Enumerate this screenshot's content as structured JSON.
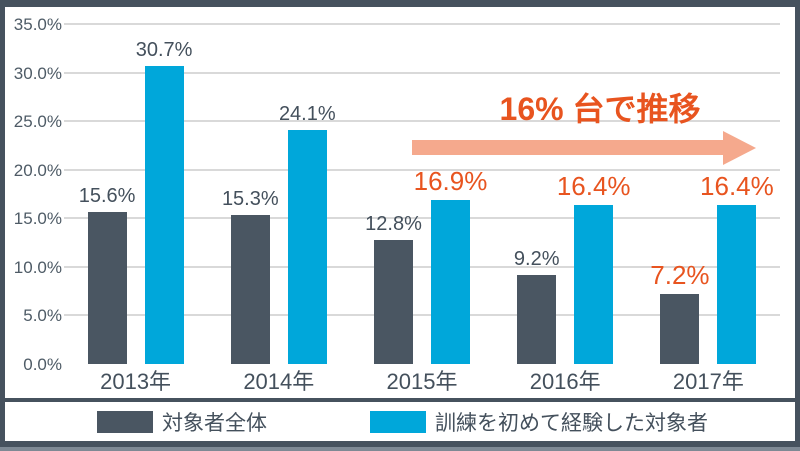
{
  "frame": {
    "border_color": "#46525E",
    "bottom_strip_color": "#7E8994"
  },
  "chart_data": {
    "type": "bar",
    "title": "",
    "categories": [
      "2013年",
      "2014年",
      "2015年",
      "2016年",
      "2017年"
    ],
    "series": [
      {
        "name": "対象者全体",
        "color": "#4A5662",
        "values": [
          15.6,
          15.3,
          12.8,
          9.2,
          7.2
        ],
        "labels": [
          "15.6%",
          "15.3%",
          "12.8%",
          "9.2%",
          "7.2%"
        ],
        "label_highlight": [
          false,
          false,
          false,
          false,
          true
        ]
      },
      {
        "name": "訓練を初めて経験した対象者",
        "color": "#00A7DA",
        "values": [
          30.7,
          24.1,
          16.9,
          16.4,
          16.4
        ],
        "labels": [
          "30.7%",
          "24.1%",
          "16.9%",
          "16.4%",
          "16.4%"
        ],
        "label_highlight": [
          false,
          false,
          true,
          true,
          true
        ]
      }
    ],
    "y_axis": {
      "min": 0,
      "max": 35,
      "tick_step": 5,
      "tick_labels": [
        "0.0%",
        "5.0%",
        "10.0%",
        "15.0%",
        "20.0%",
        "25.0%",
        "30.0%",
        "35.0%"
      ]
    },
    "grid": true,
    "legend_position": "bottom",
    "annotation": {
      "text": "16% 台で推移",
      "text_color": "#E8541F",
      "arrow_color": "#F5A98D"
    },
    "colors": {
      "gridline": "#D9D9D9",
      "axis_label": "#4E5B66",
      "value_label": "#44505C",
      "highlight_label": "#E8541F"
    }
  }
}
